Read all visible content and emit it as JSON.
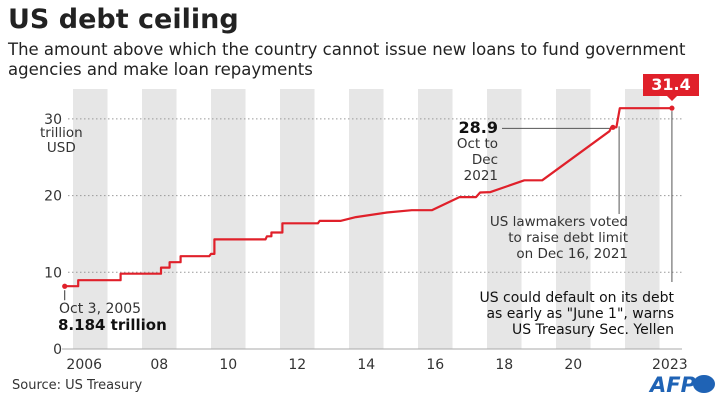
{
  "title": "US debt ceiling",
  "subtitle": "The amount above which the country cannot issue new loans to fund government agencies and make loan repayments",
  "source": "Source: US Treasury",
  "logo": "AFP",
  "colors": {
    "line": "#e0202a",
    "band": "#e6e6e6",
    "logo": "#1f63b5"
  },
  "chart_data": {
    "type": "line",
    "title": "US debt ceiling",
    "ylabel": "trillion USD",
    "ylabel_lines": [
      "trillion",
      "USD"
    ],
    "xlim": [
      2005.6,
      2023.6
    ],
    "ylim": [
      0,
      33
    ],
    "yticks": [
      0,
      10,
      20,
      30
    ],
    "xticks": [
      {
        "year": 2006.5,
        "label": "2006"
      },
      {
        "year": 2008.5,
        "label": "08"
      },
      {
        "year": 2010.5,
        "label": "10"
      },
      {
        "year": 2012.5,
        "label": "12"
      },
      {
        "year": 2014.5,
        "label": "14"
      },
      {
        "year": 2016.5,
        "label": "16"
      },
      {
        "year": 2018.5,
        "label": "18"
      },
      {
        "year": 2020.5,
        "label": "20"
      },
      {
        "year": 2023.3,
        "label": "2023"
      }
    ],
    "shaded_years": [
      2006,
      2008,
      2010,
      2012,
      2014,
      2016,
      2018,
      2020,
      2022
    ],
    "grid": "dotted horizontal",
    "series": [
      {
        "name": "Debt ceiling (trillion USD)",
        "points": [
          [
            2005.76,
            8.184
          ],
          [
            2006.15,
            8.184
          ],
          [
            2006.15,
            8.965
          ],
          [
            2007.38,
            8.965
          ],
          [
            2007.38,
            9.815
          ],
          [
            2008.55,
            9.815
          ],
          [
            2008.55,
            10.615
          ],
          [
            2008.8,
            10.615
          ],
          [
            2008.8,
            11.315
          ],
          [
            2009.12,
            11.315
          ],
          [
            2009.12,
            12.104
          ],
          [
            2009.95,
            12.104
          ],
          [
            2010.0,
            12.394
          ],
          [
            2010.1,
            12.394
          ],
          [
            2010.1,
            14.294
          ],
          [
            2011.58,
            14.294
          ],
          [
            2011.62,
            14.694
          ],
          [
            2011.75,
            14.694
          ],
          [
            2011.75,
            15.194
          ],
          [
            2012.07,
            15.194
          ],
          [
            2012.07,
            16.394
          ],
          [
            2013.1,
            16.394
          ],
          [
            2013.15,
            16.7
          ],
          [
            2013.75,
            16.7
          ],
          [
            2014.2,
            17.2
          ],
          [
            2015.1,
            17.8
          ],
          [
            2015.82,
            18.1
          ],
          [
            2016.4,
            18.1
          ],
          [
            2017.2,
            19.8
          ],
          [
            2017.68,
            19.8
          ],
          [
            2017.8,
            20.4
          ],
          [
            2018.1,
            20.45
          ],
          [
            2019.08,
            22.0
          ],
          [
            2019.6,
            22.0
          ],
          [
            2021.55,
            28.4
          ],
          [
            2021.6,
            28.9
          ],
          [
            2021.75,
            28.9
          ],
          [
            2021.85,
            31.4
          ],
          [
            2023.36,
            31.4
          ]
        ]
      }
    ],
    "annotations": {
      "start": {
        "date": "Oct 3, 2005",
        "value": "8.184 trillion",
        "x": 2005.76,
        "y": 8.184
      },
      "mid": {
        "value": "28.9",
        "date_lines": [
          "Oct to Dec",
          "2021"
        ],
        "x": 2021.65,
        "y": 28.9
      },
      "vote": {
        "lines": [
          "US lawmakers voted",
          "to raise debt limit",
          "on Dec 16, 2021"
        ],
        "x": 2021.8
      },
      "end": {
        "value": "31.4",
        "x": 2023.36,
        "y": 31.4,
        "lines": [
          "US could default on its debt",
          "as early as \"June 1\", warns",
          "US Treasury Sec. Yellen"
        ]
      }
    }
  }
}
